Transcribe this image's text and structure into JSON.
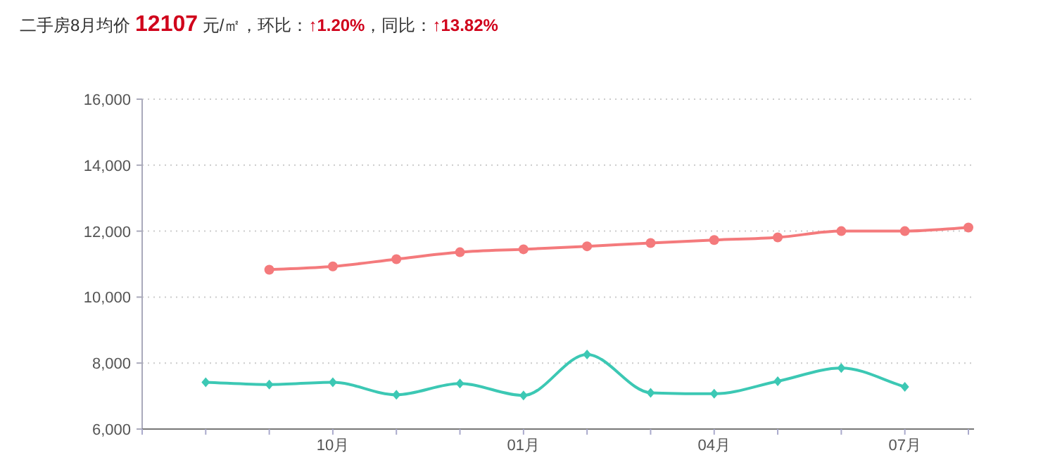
{
  "chart_data": {
    "type": "line",
    "title": "二手房8月均价 12107 元/㎡，环比：↑1.20%，同比：↑13.82%",
    "categories": [
      null,
      null,
      null,
      "10月",
      null,
      null,
      "01月",
      null,
      null,
      "04月",
      null,
      null,
      "07月",
      null
    ],
    "series": [
      {
        "color": "#f47a7c",
        "marker": "circle",
        "values": [
          null,
          null,
          10830,
          10930,
          11150,
          11360,
          11450,
          11540,
          11640,
          11730,
          11810,
          12000,
          12000,
          12110
        ]
      },
      {
        "color": "#3cc8b4",
        "marker": "diamond",
        "values": [
          null,
          7420,
          7350,
          7420,
          7040,
          7380,
          7020,
          8260,
          7100,
          7070,
          7450,
          7850,
          7280,
          null
        ]
      }
    ],
    "ylim": [
      6000,
      16000
    ],
    "yticks": [
      {
        "value": 6000,
        "label": "6,000"
      },
      {
        "value": 8000,
        "label": "8,000"
      },
      {
        "value": 10000,
        "label": "10,000"
      },
      {
        "value": 12000,
        "label": "12,000"
      },
      {
        "value": 14000,
        "label": "14,000"
      },
      {
        "value": 16000,
        "label": "16,000"
      }
    ],
    "grid": "y"
  }
}
